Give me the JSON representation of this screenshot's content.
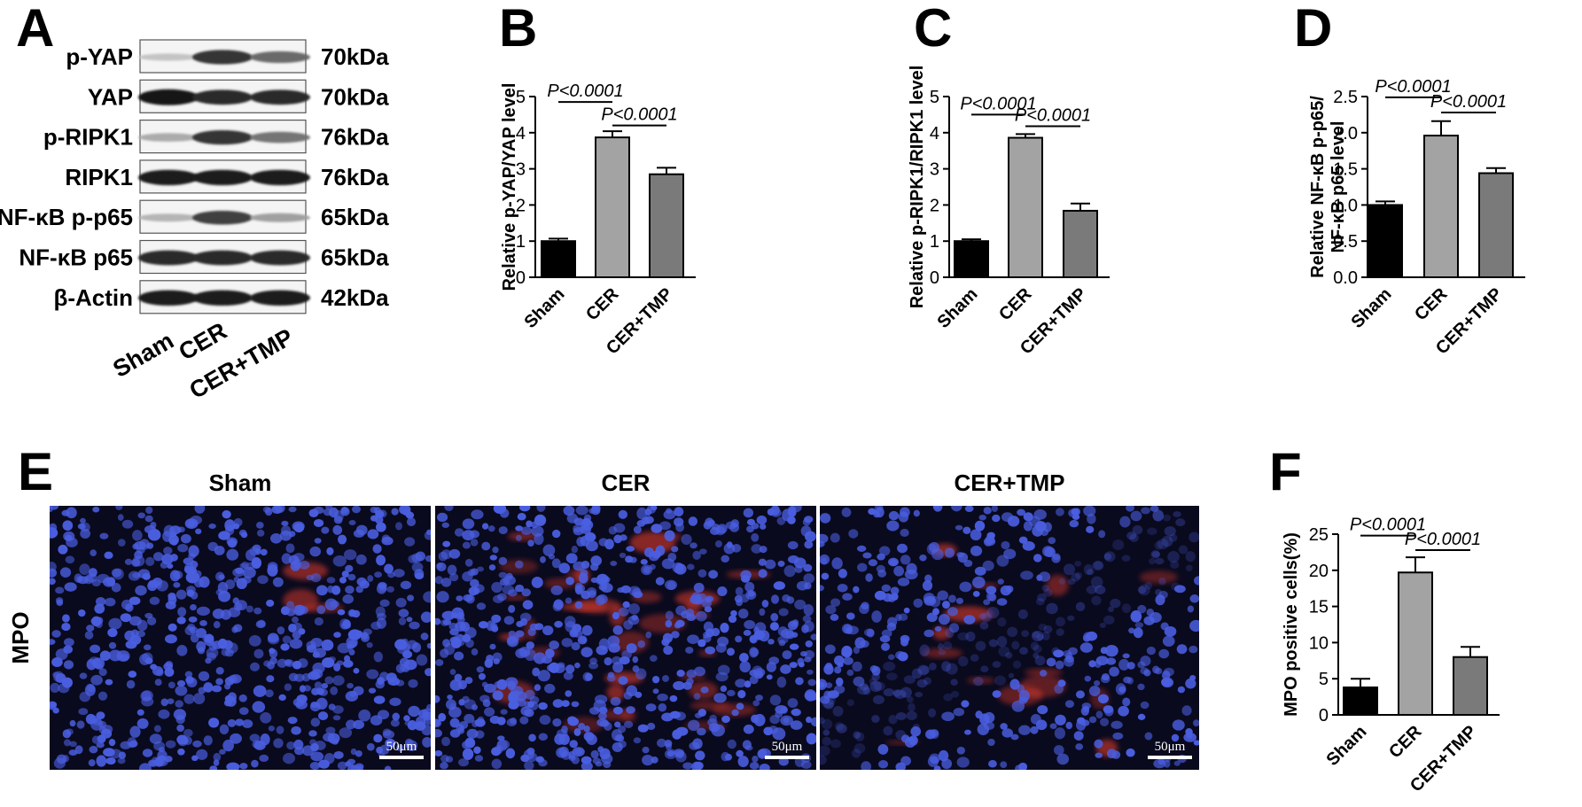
{
  "panels": {
    "A": "A",
    "B": "B",
    "C": "C",
    "D": "D",
    "E": "E",
    "F": "F"
  },
  "western_blot": {
    "rows": [
      {
        "label": "p-YAP",
        "kda": "70kDa",
        "intensity": [
          0.18,
          0.85,
          0.6
        ]
      },
      {
        "label": "YAP",
        "kda": "70kDa",
        "intensity": [
          1.0,
          0.9,
          0.9
        ]
      },
      {
        "label": "p-RIPK1",
        "kda": "76kDa",
        "intensity": [
          0.3,
          0.85,
          0.55
        ]
      },
      {
        "label": "RIPK1",
        "kda": "76kDa",
        "intensity": [
          0.95,
          0.95,
          0.95
        ]
      },
      {
        "label": "NF-κB p-p65",
        "kda": "65kDa",
        "intensity": [
          0.25,
          0.8,
          0.35
        ]
      },
      {
        "label": "NF-κB p65",
        "kda": "65kDa",
        "intensity": [
          0.9,
          0.9,
          0.9
        ]
      },
      {
        "label": "β-Actin",
        "kda": "42kDa",
        "intensity": [
          0.95,
          0.95,
          0.95
        ]
      }
    ],
    "lanes": [
      "Sham",
      "CER",
      "CER+TMP"
    ]
  },
  "chart_data": [
    {
      "panel": "B",
      "type": "bar",
      "categories": [
        "Sham",
        "CER",
        "CER+TMP"
      ],
      "values": [
        1.0,
        3.87,
        2.85
      ],
      "errors": [
        0.07,
        0.17,
        0.18
      ],
      "colors": [
        "#000000",
        "#a3a3a3",
        "#7a7a7a"
      ],
      "ylabel": "Relative p-YAP/YAP level",
      "ylim": [
        0,
        5
      ],
      "yticks": [
        "0",
        "1",
        "2",
        "3",
        "4",
        "5"
      ],
      "annotations": [
        {
          "text": "P<0.0001",
          "from": 0,
          "to": 1,
          "y": 4.85
        },
        {
          "text": "P<0.0001",
          "from": 1,
          "to": 2,
          "y": 4.2
        }
      ]
    },
    {
      "panel": "C",
      "type": "bar",
      "categories": [
        "Sham",
        "CER",
        "CER+TMP"
      ],
      "values": [
        1.0,
        3.86,
        1.84
      ],
      "errors": [
        0.05,
        0.1,
        0.2
      ],
      "colors": [
        "#000000",
        "#a3a3a3",
        "#7a7a7a"
      ],
      "ylabel": "Relative p-RIPK1/RIPK1 level",
      "ylim": [
        0,
        5
      ],
      "yticks": [
        "0",
        "1",
        "2",
        "3",
        "4",
        "5"
      ],
      "annotations": [
        {
          "text": "P<0.0001",
          "from": 0,
          "to": 1,
          "y": 4.5
        },
        {
          "text": "P<0.0001",
          "from": 1,
          "to": 2,
          "y": 4.18
        }
      ]
    },
    {
      "panel": "D",
      "type": "bar",
      "categories": [
        "Sham",
        "CER",
        "CER+TMP"
      ],
      "values": [
        1.0,
        1.96,
        1.44
      ],
      "errors": [
        0.05,
        0.2,
        0.07
      ],
      "colors": [
        "#000000",
        "#a3a3a3",
        "#7a7a7a"
      ],
      "ylabel_lines": [
        "Relative NF-κB p-p65/",
        "NF-κB p65 level"
      ],
      "ylim": [
        0,
        2.5
      ],
      "yticks": [
        "0.0",
        "0.5",
        "1.0",
        "1.5",
        "2.0",
        "2.5"
      ],
      "annotations": [
        {
          "text": "P<0.0001",
          "from": 0,
          "to": 1,
          "y": 2.49
        },
        {
          "text": "P<0.0001",
          "from": 1,
          "to": 2,
          "y": 2.28
        }
      ]
    },
    {
      "panel": "F",
      "type": "bar",
      "categories": [
        "Sham",
        "CER",
        "CER+TMP"
      ],
      "values": [
        3.8,
        19.7,
        8.0
      ],
      "errors": [
        1.2,
        2.1,
        1.4
      ],
      "colors": [
        "#000000",
        "#a3a3a3",
        "#7a7a7a"
      ],
      "ylabel": "MPO positive cells(%)",
      "ylim": [
        0,
        25
      ],
      "yticks": [
        "0",
        "5",
        "10",
        "15",
        "20",
        "25"
      ],
      "annotations": [
        {
          "text": "P<0.0001",
          "from": 0,
          "to": 1,
          "y": 24.8
        },
        {
          "text": "P<0.0001",
          "from": 1,
          "to": 2,
          "y": 22.8
        }
      ]
    }
  ],
  "fluorescence": {
    "row_label": "MPO",
    "images": [
      {
        "title": "Sham",
        "scale": "50μm",
        "red_level": 0.05
      },
      {
        "title": "CER",
        "scale": "50μm",
        "red_level": 0.55
      },
      {
        "title": "CER+TMP",
        "scale": "50μm",
        "red_level": 0.25
      }
    ]
  },
  "colors": {
    "nucleus_blue": "#4a5ee0",
    "background_dark": "#0a0a1e",
    "mpo_red": "#c0342a"
  }
}
